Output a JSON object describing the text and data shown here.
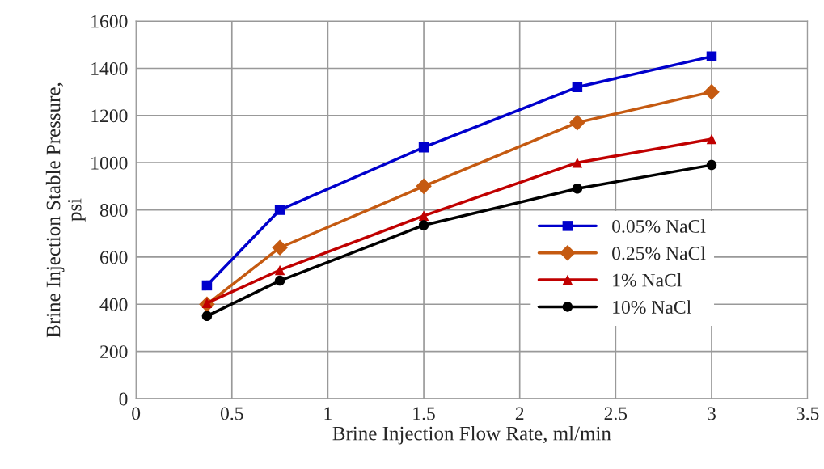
{
  "chart_data": {
    "type": "line",
    "xlabel": "Brine Injection Flow Rate, ml/min",
    "ylabel": "Brine Injection Stable Pressure,\npsi",
    "x": [
      0.37,
      0.75,
      1.5,
      2.3,
      3.0
    ],
    "series": [
      {
        "name": "0.05% NaCl",
        "color": "#0000cc",
        "marker": "square",
        "values": [
          480,
          800,
          1065,
          1320,
          1450
        ]
      },
      {
        "name": "0.25% NaCl",
        "color": "#c55a11",
        "marker": "diamond",
        "values": [
          400,
          640,
          900,
          1170,
          1300
        ]
      },
      {
        "name": "1% NaCl",
        "color": "#c00000",
        "marker": "triangle",
        "values": [
          405,
          545,
          775,
          1000,
          1100
        ]
      },
      {
        "name": "10% NaCl",
        "color": "#000000",
        "marker": "circle",
        "values": [
          350,
          500,
          735,
          890,
          990
        ]
      }
    ],
    "xlim": [
      0,
      3.5
    ],
    "xticks": [
      0,
      0.5,
      1,
      1.5,
      2,
      2.5,
      3,
      3.5
    ],
    "ylim": [
      0,
      1600
    ],
    "yticks": [
      0,
      200,
      400,
      600,
      800,
      1000,
      1200,
      1400,
      1600
    ],
    "grid": true,
    "legend": "right",
    "line_style": "solid"
  }
}
